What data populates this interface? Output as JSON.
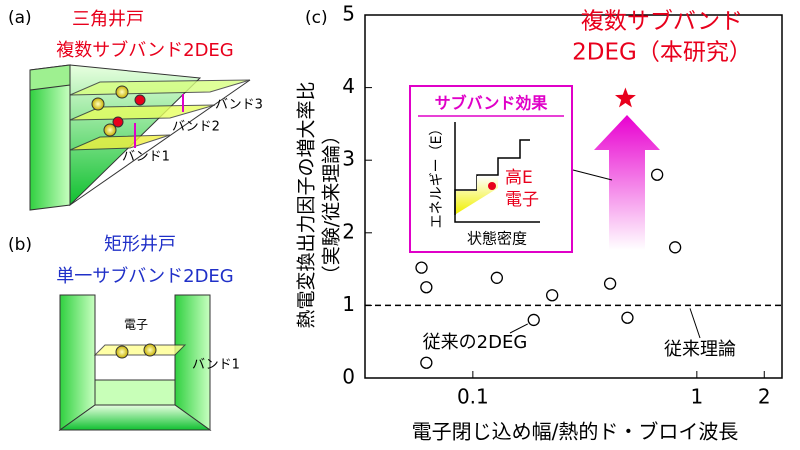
{
  "panels": {
    "a": {
      "label": "(a)",
      "title": "三角井戸",
      "subtitle": "複数サブバンド2DEG",
      "bands": [
        "バンド3",
        "バンド2",
        "バンド1"
      ]
    },
    "b": {
      "label": "(b)",
      "title": "矩形井戸",
      "subtitle": "単一サブバンド2DEG",
      "electron": "電子",
      "band": "バンド1"
    }
  },
  "chart_data": {
    "type": "scatter",
    "panel_label": "(c)",
    "x_label": "電子閉じ込め幅/熱的ド・ブロイ波長",
    "y_label": [
      "熱電変換出力因子の増大率比",
      "（実験/従来理論）"
    ],
    "xscale": "log",
    "xlim": [
      0.033,
      2.4
    ],
    "xticks": [
      0.1,
      1,
      2
    ],
    "ylim": [
      0,
      5
    ],
    "yticks": [
      0,
      1,
      2,
      3,
      4,
      5
    ],
    "x": [
      0.059,
      0.062,
      0.062,
      0.128,
      0.187,
      0.226,
      0.41,
      0.49,
      0.665,
      0.8
    ],
    "values": [
      1.52,
      1.25,
      0.21,
      1.38,
      0.8,
      1.14,
      1.3,
      0.83,
      2.8,
      1.8
    ],
    "highlight": {
      "name": [
        "複数サブバンド",
        "2DEG（本研究）"
      ],
      "x": [
        0.48
      ],
      "values": [
        3.85
      ],
      "color": "#e8001c"
    },
    "reference_line": {
      "label": "従来理論",
      "value": 1
    },
    "point_label": "従来の2DEG",
    "inset": {
      "title": "サブバンド効果",
      "y_label": "エネルギー（E）",
      "x_label": "状態密度",
      "labels": [
        "高E",
        "電子"
      ],
      "color": "#e000c8"
    }
  }
}
